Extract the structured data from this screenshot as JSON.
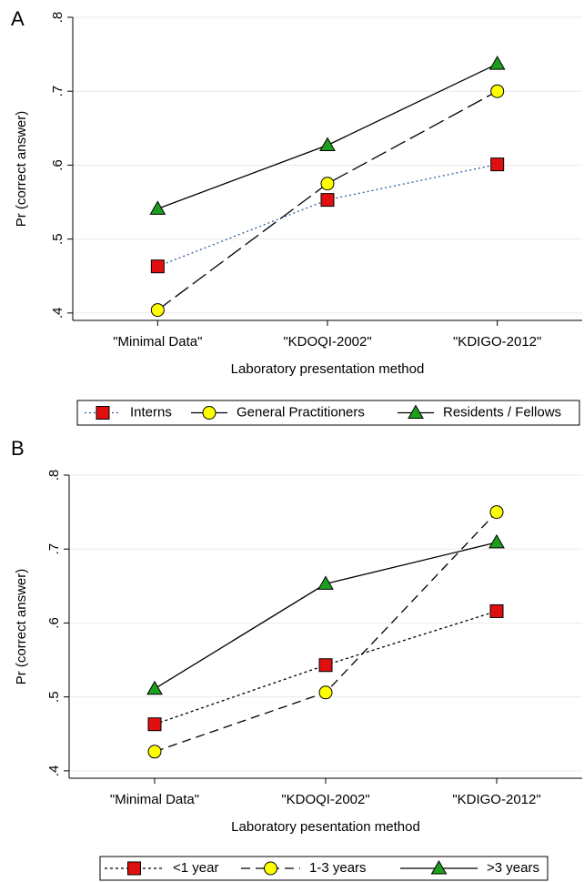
{
  "chart_data": [
    {
      "type": "line",
      "panel_label": "A",
      "categories": [
        "\"Minimal Data\"",
        "\"KDOQI-2002\"",
        "\"KDIGO-2012\""
      ],
      "x_label": "Laboratory presentation method",
      "y_label": "Pr (correct answer)",
      "ylim": [
        0.39,
        0.8
      ],
      "yticks": [
        {
          "value": 0.4,
          "label": ".4"
        },
        {
          "value": 0.5,
          "label": ".5"
        },
        {
          "value": 0.6,
          "label": ".6"
        },
        {
          "value": 0.7,
          "label": ".7"
        },
        {
          "value": 0.8,
          "label": ".8"
        }
      ],
      "grid": true,
      "series": [
        {
          "name": "Interns",
          "color": "#e01010",
          "line_color": "#2b5d9b",
          "dash": "2,3",
          "marker": "square",
          "values": [
            0.463,
            0.553,
            0.601
          ]
        },
        {
          "name": "General Practitioners",
          "color": "#ffff00",
          "line_color": "#000000",
          "dash": "18,6",
          "marker": "circle",
          "values": [
            0.404,
            0.575,
            0.7
          ]
        },
        {
          "name": "Residents / Fellows",
          "color": "#1e9e1e",
          "line_color": "#000000",
          "dash": "none",
          "marker": "triangle",
          "values": [
            0.541,
            0.627,
            0.737
          ]
        }
      ]
    },
    {
      "type": "line",
      "panel_label": "B",
      "categories": [
        "\"Minimal Data\"",
        "\"KDOQI-2002\"",
        "\"KDIGO-2012\""
      ],
      "x_label": "Laboratory pesentation method",
      "y_label": "Pr (correct answer)",
      "ylim": [
        0.39,
        0.8
      ],
      "yticks": [
        {
          "value": 0.4,
          "label": ".4"
        },
        {
          "value": 0.5,
          "label": ".5"
        },
        {
          "value": 0.6,
          "label": ".6"
        },
        {
          "value": 0.7,
          "label": ".7"
        },
        {
          "value": 0.8,
          "label": ".8"
        }
      ],
      "grid": true,
      "series": [
        {
          "name": "<1 year",
          "color": "#e01010",
          "line_color": "#000000",
          "dash": "3,3",
          "marker": "square",
          "values": [
            0.463,
            0.543,
            0.616
          ]
        },
        {
          "name": "1-3 years",
          "color": "#ffff00",
          "line_color": "#000000",
          "dash": "10,6",
          "marker": "circle",
          "values": [
            0.426,
            0.506,
            0.75
          ]
        },
        {
          "name": ">3 years",
          "color": "#1e9e1e",
          "line_color": "#000000",
          "dash": "none",
          "marker": "triangle",
          "values": [
            0.511,
            0.653,
            0.709
          ]
        }
      ]
    }
  ]
}
